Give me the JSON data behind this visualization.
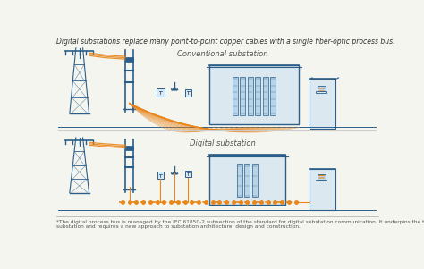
{
  "title_text": "Digital substations replace many point-to-point copper cables with a single fiber-optic process bus.",
  "footer_text": "*The digital process bus is managed by the IEC 61850-2 subsection of the standard for digital substation communication. It underpins the true digital\nsubstation and requires a new approach to substation architecture, design and construction.",
  "conventional_label": "Conventional substation",
  "digital_label": "Digital substation",
  "bg_color": "#f5f5f0",
  "cable_color": "#e8861a",
  "struct_color": "#2b5f8a",
  "building_color": "#dce8f0",
  "building_border": "#2b5f8a",
  "title_color": "#333333",
  "footer_color": "#555555",
  "label_color": "#555555",
  "figsize": [
    4.74,
    3.01
  ],
  "dpi": 100
}
